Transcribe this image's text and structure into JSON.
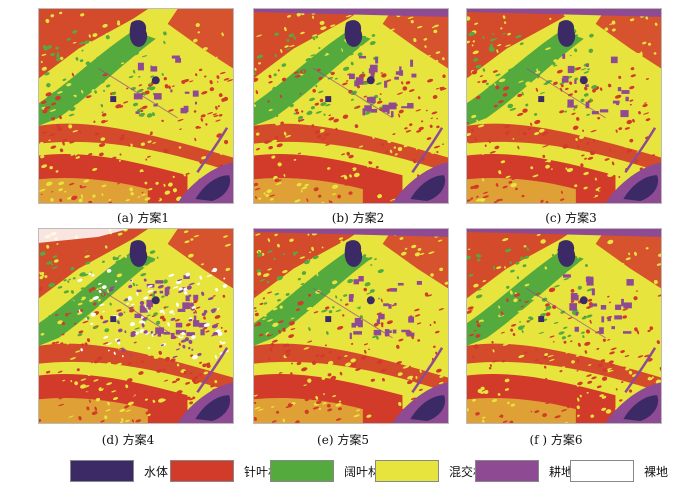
{
  "panels": [
    {
      "id": "a",
      "caption": "(a) 方案1"
    },
    {
      "id": "b",
      "caption": "(b) 方案2"
    },
    {
      "id": "c",
      "caption": "(c) 方案3"
    },
    {
      "id": "d",
      "caption": "(d) 方案4"
    },
    {
      "id": "e",
      "caption": "(e) 方案5"
    },
    {
      "id": "f",
      "caption": "(f ) 方案6"
    }
  ],
  "legend": [
    {
      "label": "水体",
      "color": "#3b2a66"
    },
    {
      "label": "针叶林",
      "color": "#d23a2a"
    },
    {
      "label": "阔叶林",
      "color": "#55aa3e"
    },
    {
      "label": "混交林",
      "color": "#e8e43e"
    },
    {
      "label": "耕地",
      "color": "#8e4a92"
    },
    {
      "label": "裸地",
      "color": "#ffffff"
    }
  ]
}
